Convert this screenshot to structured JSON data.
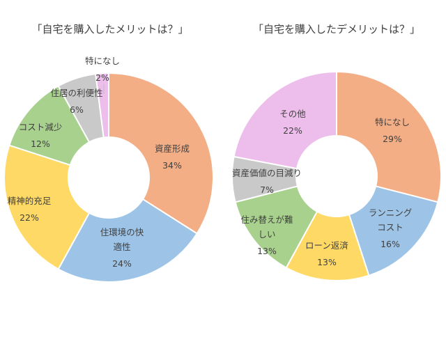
{
  "chart_data": [
    {
      "type": "pie",
      "title": "「自宅を購入したメリットは？」",
      "inner_hole": true,
      "slices": [
        {
          "label": "資産形成",
          "value": 34,
          "value_label": "34%",
          "color": "#F3AE85"
        },
        {
          "label": "住環境の快適性",
          "label_lines": [
            "住環境の快",
            "適性"
          ],
          "value": 24,
          "value_label": "24%",
          "color": "#9DC3E6"
        },
        {
          "label": "精神的充足",
          "value": 22,
          "value_label": "22%",
          "color": "#FFD966"
        },
        {
          "label": "コスト減少",
          "value": 12,
          "value_label": "12%",
          "color": "#A9D18E"
        },
        {
          "label": "住居の利便性",
          "value": 6,
          "value_label": "6%",
          "color": "#C9C9C9"
        },
        {
          "label": "特になし",
          "value": 2,
          "value_label": "2%",
          "color": "#EDBDEB"
        }
      ]
    },
    {
      "type": "pie",
      "title": "「自宅を購入したデメリットは？」",
      "inner_hole": true,
      "slices": [
        {
          "label": "特になし",
          "value": 29,
          "value_label": "29%",
          "color": "#F3AE85"
        },
        {
          "label": "ランニングコスト",
          "label_lines": [
            "ランニング",
            "コスト"
          ],
          "value": 16,
          "value_label": "16%",
          "color": "#9DC3E6"
        },
        {
          "label": "ローン返済",
          "value": 13,
          "value_label": "13%",
          "color": "#FFD966"
        },
        {
          "label": "住み替えが難しい",
          "label_lines": [
            "住み替えが難",
            "しい"
          ],
          "value": 13,
          "value_label": "13%",
          "color": "#A9D18E"
        },
        {
          "label": "資産価値の目減り",
          "value": 7,
          "value_label": "7%",
          "color": "#C9C9C9"
        },
        {
          "label": "その他",
          "value": 22,
          "value_label": "22%",
          "color": "#EDBDEB"
        }
      ]
    }
  ]
}
